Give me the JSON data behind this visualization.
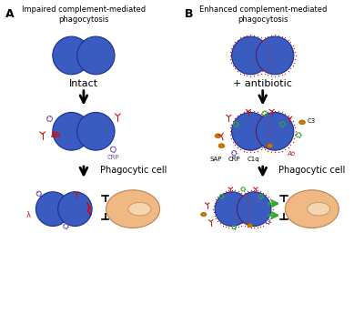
{
  "bg_color": "#ffffff",
  "cell_color": "#3a5bbf",
  "cell_edge_color": "#1a3090",
  "phagocyte_color": "#f0b882",
  "phagocyte_inner_color": "#f5d5b0",
  "title_A": "Impaired complement-mediated\nphagocytosis",
  "title_B": "Enhanced complement-mediated\nphagocytosis",
  "label_A": "A",
  "label_B": "B",
  "text_intact": "Intact",
  "text_antibiotic": "+ antibiotic",
  "text_phagocytic": "Phagocytic cell",
  "ab_color": "#cc1111",
  "crp_color": "#7755bb",
  "green_color": "#33aa33",
  "orange_color": "#cc7700",
  "red_dot_color": "#dd2222",
  "black": "#111111",
  "font_title": 6.0,
  "font_AB": 9,
  "font_label": 8,
  "font_sublabel": 7,
  "font_annot": 5.0
}
